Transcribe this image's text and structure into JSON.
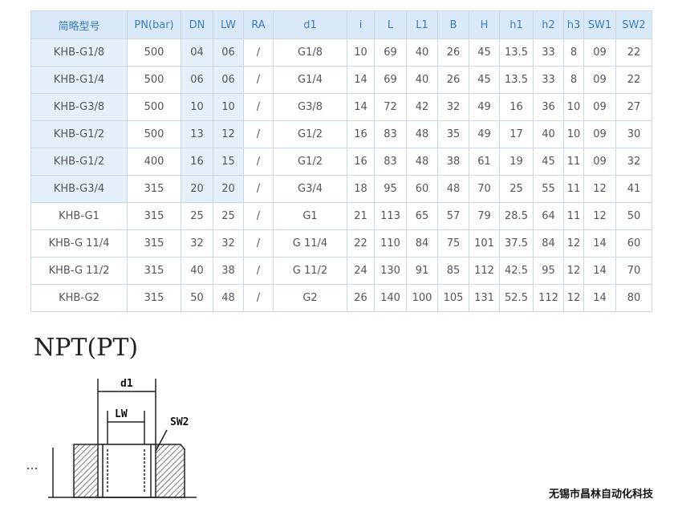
{
  "table": {
    "header": [
      "简略型号",
      "PN(bar)",
      "DN",
      "LW",
      "RA",
      "d1",
      "i",
      "L",
      "L1",
      "B",
      "H",
      "h1",
      "h2",
      "h3",
      "SW1",
      "SW2"
    ],
    "rows": [
      [
        "KHB-G1/8",
        "500",
        "04",
        "06",
        "/",
        "G1/8",
        "10",
        "69",
        "40",
        "26",
        "45",
        "13.5",
        "33",
        "8",
        "09",
        "22"
      ],
      [
        "KHB-G1/4",
        "500",
        "06",
        "06",
        "/",
        "G1/4",
        "14",
        "69",
        "40",
        "26",
        "45",
        "13.5",
        "33",
        "8",
        "09",
        "22"
      ],
      [
        "KHB-G3/8",
        "500",
        "10",
        "10",
        "/",
        "G3/8",
        "14",
        "72",
        "42",
        "32",
        "49",
        "16",
        "36",
        "10",
        "09",
        "27"
      ],
      [
        "KHB-G1/2",
        "500",
        "13",
        "12",
        "/",
        "G1/2",
        "16",
        "83",
        "48",
        "35",
        "49",
        "17",
        "40",
        "10",
        "09",
        "30"
      ],
      [
        "KHB-G1/2",
        "400",
        "16",
        "15",
        "/",
        "G1/2",
        "16",
        "83",
        "48",
        "38",
        "61",
        "19",
        "45",
        "11",
        "09",
        "32"
      ],
      [
        "KHB-G3/4",
        "315",
        "20",
        "20",
        "/",
        "G3/4",
        "18",
        "95",
        "60",
        "48",
        "70",
        "25",
        "55",
        "11",
        "12",
        "41"
      ],
      [
        "KHB-G1",
        "315",
        "25",
        "25",
        "/",
        "G1",
        "21",
        "113",
        "65",
        "57",
        "79",
        "28.5",
        "64",
        "11",
        "12",
        "50"
      ],
      [
        "KHB-G 11/4",
        "315",
        "32",
        "32",
        "/",
        "G 11/4",
        "22",
        "110",
        "84",
        "75",
        "101",
        "37.5",
        "84",
        "12",
        "14",
        "60"
      ],
      [
        "KHB-G 11/2",
        "315",
        "40",
        "38",
        "/",
        "G 11/2",
        "24",
        "130",
        "91",
        "85",
        "112",
        "42.5",
        "95",
        "12",
        "14",
        "70"
      ],
      [
        "KHB-G2",
        "315",
        "50",
        "48",
        "/",
        "G2",
        "26",
        "140",
        "100",
        "105",
        "131",
        "52.5",
        "112",
        "12",
        "14",
        "80"
      ]
    ]
  },
  "section_title": "NPT(PT)",
  "diagram": {
    "labels": [
      "d1",
      "LW",
      "SW2"
    ]
  },
  "footer": "无锡市昌林自动化科技"
}
